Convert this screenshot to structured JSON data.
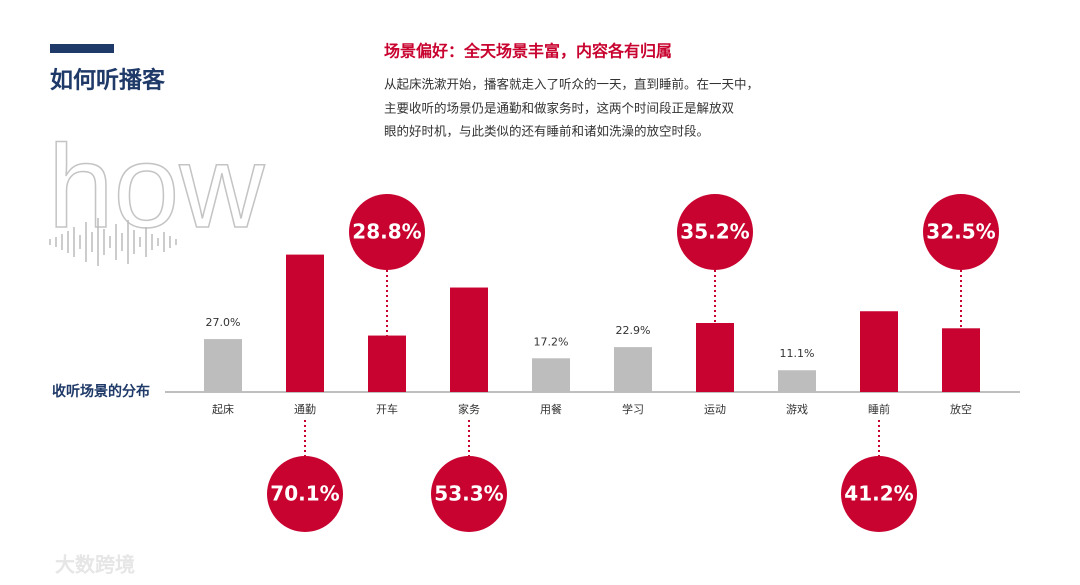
{
  "header": {
    "title": "如何听播客",
    "decor_word": "how"
  },
  "intro": {
    "title": "场景偏好：全天场景丰富，内容各有归属",
    "lines": [
      "从起床洗漱开始，播客就走入了听众的一天，直到睡前。在一天中，",
      "主要收听的场景仍是通勤和做家务时，这两个时间段正是解放双",
      "眼的好时机，与此类似的还有睡前和诸如洗澡的放空时段。"
    ]
  },
  "watermark": "大数跨境",
  "chart_data": {
    "type": "bar",
    "axis_label": "收听场景的分布",
    "categories": [
      "起床",
      "通勤",
      "开车",
      "家务",
      "用餐",
      "学习",
      "运动",
      "游戏",
      "睡前",
      "放空"
    ],
    "values": [
      27.0,
      70.1,
      28.8,
      53.3,
      17.2,
      22.9,
      35.2,
      11.1,
      41.2,
      32.5
    ],
    "value_labels": [
      "27.0%",
      "70.1%",
      "28.8%",
      "53.3%",
      "17.2%",
      "22.9%",
      "35.2%",
      "11.1%",
      "41.2%",
      "32.5%"
    ],
    "colors": [
      "#bdbdbd",
      "#c8032f",
      "#c8032f",
      "#c8032f",
      "#bdbdbd",
      "#bdbdbd",
      "#c8032f",
      "#bdbdbd",
      "#c8032f",
      "#c8032f"
    ]
  }
}
